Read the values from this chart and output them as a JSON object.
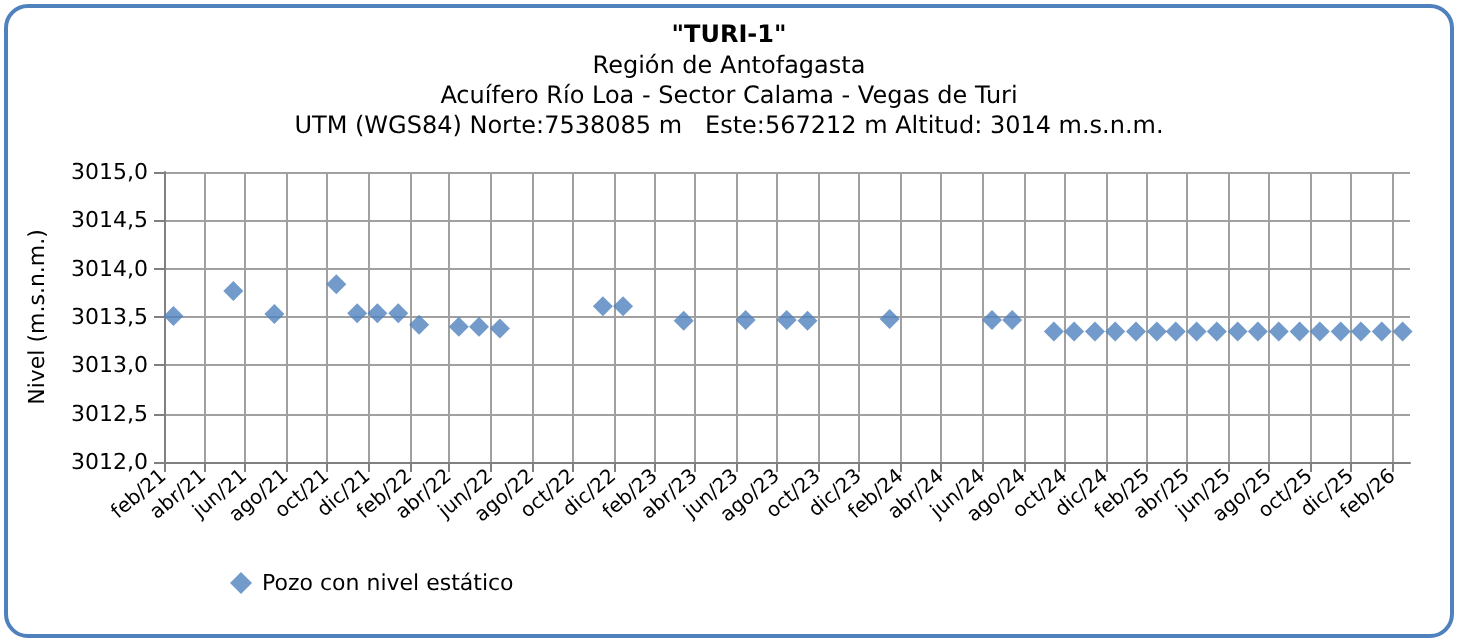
{
  "chart_data": {
    "type": "scatter",
    "title": "\"TURI-1\"",
    "subtitle": "Región de Antofagasta\nAcuífero Río Loa - Sector Calama - Vegas de Turi\nUTM (WGS84) Norte:7538085 m   Este:567212 m Altitud: 3014 m.s.n.m.",
    "ylabel": "Nivel (m.s.n.m.)",
    "x": [
      "2021-02-15",
      "2021-05-15",
      "2021-07-15",
      "2021-10-15",
      "2021-11-15",
      "2021-12-15",
      "2022-01-15",
      "2022-02-15",
      "2022-04-15",
      "2022-05-15",
      "2022-06-15",
      "2022-11-15",
      "2022-12-15",
      "2023-03-15",
      "2023-06-15",
      "2023-08-15",
      "2023-09-15",
      "2024-01-15",
      "2024-06-15",
      "2024-07-15",
      "2024-09-15",
      "2024-10-15",
      "2024-11-15",
      "2024-12-15",
      "2025-01-15",
      "2025-02-15",
      "2025-03-15",
      "2025-04-15",
      "2025-05-15",
      "2025-06-15",
      "2025-07-15",
      "2025-08-15",
      "2025-09-15",
      "2025-10-15",
      "2025-11-15",
      "2025-12-15",
      "2026-01-15",
      "2026-02-15"
    ],
    "series": [
      {
        "name": "Pozo con nivel estático",
        "color": "#4f81bd",
        "values": [
          3013.51,
          3013.77,
          3013.53,
          3013.84,
          3013.54,
          3013.54,
          3013.54,
          3013.42,
          3013.4,
          3013.4,
          3013.38,
          3013.61,
          3013.61,
          3013.46,
          3013.47,
          3013.47,
          3013.46,
          3013.48,
          3013.47,
          3013.47,
          3013.35,
          3013.35,
          3013.35,
          3013.35,
          3013.35,
          3013.35,
          3013.35,
          3013.35,
          3013.35,
          3013.35,
          3013.35,
          3013.35,
          3013.35,
          3013.35,
          3013.35,
          3013.35,
          3013.35,
          3013.35
        ]
      }
    ],
    "xlim": [
      "2021-02",
      "2026-02-26"
    ],
    "xticks": [
      {
        "value": "2021-02",
        "label": "feb/21"
      },
      {
        "value": "2021-04",
        "label": "abr/21"
      },
      {
        "value": "2021-06",
        "label": "jun/21"
      },
      {
        "value": "2021-08",
        "label": "ago/21"
      },
      {
        "value": "2021-10",
        "label": "oct/21"
      },
      {
        "value": "2021-12",
        "label": "dic/21"
      },
      {
        "value": "2022-02",
        "label": "feb/22"
      },
      {
        "value": "2022-04",
        "label": "abr/22"
      },
      {
        "value": "2022-06",
        "label": "jun/22"
      },
      {
        "value": "2022-08",
        "label": "ago/22"
      },
      {
        "value": "2022-10",
        "label": "oct/22"
      },
      {
        "value": "2022-12",
        "label": "dic/22"
      },
      {
        "value": "2023-02",
        "label": "feb/23"
      },
      {
        "value": "2023-04",
        "label": "abr/23"
      },
      {
        "value": "2023-06",
        "label": "jun/23"
      },
      {
        "value": "2023-08",
        "label": "ago/23"
      },
      {
        "value": "2023-10",
        "label": "oct/23"
      },
      {
        "value": "2023-12",
        "label": "dic/23"
      },
      {
        "value": "2024-02",
        "label": "feb/24"
      },
      {
        "value": "2024-04",
        "label": "abr/24"
      },
      {
        "value": "2024-06",
        "label": "jun/24"
      },
      {
        "value": "2024-08",
        "label": "ago/24"
      },
      {
        "value": "2024-10",
        "label": "oct/24"
      },
      {
        "value": "2024-12",
        "label": "dic/24"
      },
      {
        "value": "2025-02",
        "label": "feb/25"
      },
      {
        "value": "2025-04",
        "label": "abr/25"
      },
      {
        "value": "2025-06",
        "label": "jun/25"
      },
      {
        "value": "2025-08",
        "label": "ago/25"
      },
      {
        "value": "2025-10",
        "label": "oct/25"
      },
      {
        "value": "2025-12",
        "label": "dic/25"
      },
      {
        "value": "2026-02",
        "label": "feb/26"
      }
    ],
    "ylim": [
      3012,
      3015
    ],
    "yticks": [
      {
        "value": 3012,
        "label": "3012,0"
      },
      {
        "value": 3012.5,
        "label": "3012,5"
      },
      {
        "value": 3013,
        "label": "3013,0"
      },
      {
        "value": 3013.5,
        "label": "3013,5"
      },
      {
        "value": 3014,
        "label": "3014,0"
      },
      {
        "value": 3014.5,
        "label": "3014,5"
      },
      {
        "value": 3015,
        "label": "3015,0"
      }
    ],
    "grid": true,
    "legend": "bottom left",
    "marker": "diamond"
  }
}
